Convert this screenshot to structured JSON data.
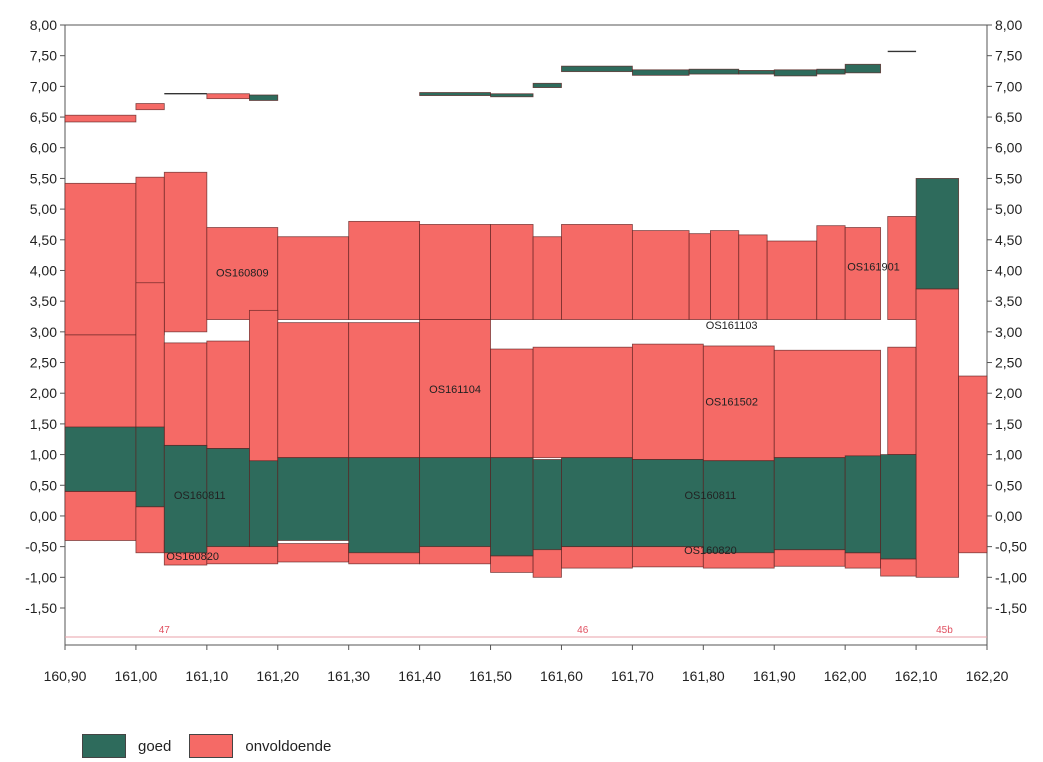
{
  "colors": {
    "goed": "#2e6b5c",
    "onvoldoende": "#f56a66",
    "outline": "#5a1e1e",
    "km_line": "#e8a0a8",
    "km_text": "#e05060"
  },
  "legend": {
    "goed": "goed",
    "onvoldoende": "onvoldoende"
  },
  "chart_data": {
    "type": "area",
    "title": "",
    "xlabel": "",
    "ylabel": "",
    "xlim": [
      160.9,
      162.2
    ],
    "ylim": [
      -1.5,
      8.0
    ],
    "x_ticks": [
      "160,90",
      "161,00",
      "161,10",
      "161,20",
      "161,30",
      "161,40",
      "161,50",
      "161,60",
      "161,70",
      "161,80",
      "161,90",
      "162,00",
      "162,10",
      "162,20"
    ],
    "y_ticks": [
      "8,00",
      "7,50",
      "7,00",
      "6,50",
      "6,00",
      "5,50",
      "5,00",
      "4,50",
      "4,00",
      "3,50",
      "3,00",
      "2,50",
      "2,00",
      "1,50",
      "1,00",
      "0,50",
      "0,00",
      "-0,50",
      "-1,00",
      "-1,50"
    ],
    "series": [
      {
        "name": "onvoldoende",
        "rects": [
          [
            160.9,
            161.0,
            2.95,
            5.42
          ],
          [
            161.0,
            161.04,
            2.95,
            5.52
          ],
          [
            161.04,
            161.1,
            3.0,
            5.6
          ],
          [
            161.1,
            161.2,
            3.2,
            4.7
          ],
          [
            161.2,
            161.3,
            3.2,
            4.55
          ],
          [
            161.3,
            161.4,
            3.2,
            4.8
          ],
          [
            161.4,
            161.5,
            3.2,
            4.75
          ],
          [
            161.5,
            161.56,
            3.2,
            4.75
          ],
          [
            161.56,
            161.6,
            3.2,
            4.55
          ],
          [
            161.6,
            161.7,
            3.2,
            4.75
          ],
          [
            161.7,
            161.78,
            3.2,
            4.65
          ],
          [
            161.78,
            161.81,
            3.2,
            4.6
          ],
          [
            161.81,
            161.85,
            3.2,
            4.65
          ],
          [
            161.85,
            161.89,
            3.2,
            4.58
          ],
          [
            161.89,
            161.96,
            3.2,
            4.48
          ],
          [
            161.96,
            162.0,
            3.2,
            4.73
          ],
          [
            162.0,
            162.05,
            3.2,
            4.7
          ],
          [
            162.06,
            162.1,
            3.2,
            4.88
          ],
          [
            160.9,
            161.0,
            1.4,
            2.95
          ],
          [
            161.0,
            161.04,
            1.4,
            3.8
          ],
          [
            161.04,
            161.1,
            1.15,
            2.82
          ],
          [
            161.1,
            161.16,
            1.1,
            2.85
          ],
          [
            161.16,
            161.2,
            0.88,
            3.35
          ],
          [
            161.2,
            161.3,
            0.95,
            3.15
          ],
          [
            161.3,
            161.4,
            0.95,
            3.15
          ],
          [
            161.4,
            161.5,
            0.95,
            3.2
          ],
          [
            161.5,
            161.56,
            0.95,
            2.72
          ],
          [
            161.56,
            161.7,
            0.95,
            2.75
          ],
          [
            161.7,
            161.8,
            0.92,
            2.8
          ],
          [
            161.8,
            161.9,
            0.9,
            2.77
          ],
          [
            161.9,
            162.05,
            0.95,
            2.7
          ],
          [
            162.06,
            162.1,
            1.0,
            2.75
          ],
          [
            162.1,
            162.16,
            -1.0,
            3.7
          ],
          [
            162.16,
            162.2,
            -0.6,
            2.28
          ],
          [
            160.9,
            161.0,
            -0.4,
            0.4
          ],
          [
            161.0,
            161.04,
            -0.6,
            0.15
          ],
          [
            161.04,
            161.1,
            -0.8,
            -0.4
          ],
          [
            161.1,
            161.2,
            -0.78,
            -0.45
          ],
          [
            161.2,
            161.3,
            -0.75,
            -0.45
          ],
          [
            161.3,
            161.4,
            -0.78,
            -0.45
          ],
          [
            161.4,
            161.5,
            -0.78,
            -0.45
          ],
          [
            161.5,
            161.56,
            -0.92,
            -0.65
          ],
          [
            161.56,
            161.6,
            -1.0,
            -0.5
          ],
          [
            161.6,
            161.7,
            -0.85,
            -0.5
          ],
          [
            161.7,
            161.8,
            -0.83,
            -0.5
          ],
          [
            161.8,
            161.9,
            -0.85,
            -0.55
          ],
          [
            161.9,
            162.0,
            -0.82,
            -0.55
          ],
          [
            162.0,
            162.05,
            -0.85,
            -0.6
          ],
          [
            162.05,
            162.1,
            -0.98,
            -0.7
          ],
          [
            160.9,
            161.0,
            6.42,
            6.53
          ],
          [
            161.0,
            161.04,
            6.62,
            6.72
          ],
          [
            161.1,
            161.16,
            6.8,
            6.88
          ]
        ]
      },
      {
        "name": "goed",
        "rects": [
          [
            160.9,
            161.0,
            0.4,
            1.45
          ],
          [
            161.0,
            161.04,
            0.15,
            1.45
          ],
          [
            161.04,
            161.1,
            -0.6,
            1.15
          ],
          [
            161.1,
            161.16,
            -0.5,
            1.1
          ],
          [
            161.16,
            161.2,
            -0.5,
            0.9
          ],
          [
            161.2,
            161.3,
            -0.4,
            0.95
          ],
          [
            161.3,
            161.4,
            -0.6,
            0.95
          ],
          [
            161.4,
            161.5,
            -0.5,
            0.95
          ],
          [
            161.5,
            161.56,
            -0.65,
            0.95
          ],
          [
            161.56,
            161.6,
            -0.55,
            0.92
          ],
          [
            161.6,
            161.7,
            -0.5,
            0.95
          ],
          [
            161.7,
            161.8,
            -0.5,
            0.92
          ],
          [
            161.8,
            161.9,
            -0.6,
            0.9
          ],
          [
            161.9,
            162.0,
            -0.55,
            0.95
          ],
          [
            162.0,
            162.05,
            -0.6,
            0.98
          ],
          [
            162.05,
            162.1,
            -0.7,
            1.0
          ],
          [
            162.1,
            162.16,
            3.7,
            5.5
          ],
          [
            161.16,
            161.2,
            6.77,
            6.86
          ],
          [
            161.4,
            161.5,
            6.85,
            6.9
          ],
          [
            161.5,
            161.56,
            6.83,
            6.88
          ],
          [
            161.56,
            161.6,
            6.98,
            7.05
          ],
          [
            161.6,
            161.7,
            7.24,
            7.33
          ],
          [
            161.7,
            161.78,
            7.18,
            7.27
          ],
          [
            161.78,
            161.85,
            7.2,
            7.28
          ],
          [
            161.85,
            161.9,
            7.2,
            7.26
          ],
          [
            161.9,
            161.96,
            7.17,
            7.27
          ],
          [
            161.96,
            162.0,
            7.2,
            7.28
          ],
          [
            162.0,
            162.05,
            7.22,
            7.36
          ]
        ]
      }
    ],
    "flat_lines": [
      [
        161.04,
        161.1,
        6.88
      ],
      [
        162.06,
        162.1,
        7.57
      ]
    ],
    "annotations": [
      {
        "text": "OS160809",
        "x": 161.15,
        "y": 3.9
      },
      {
        "text": "OS161104",
        "x": 161.45,
        "y": 2.0
      },
      {
        "text": "OS161502",
        "x": 161.84,
        "y": 1.8
      },
      {
        "text": "OS161103",
        "x": 161.84,
        "y": 3.05
      },
      {
        "text": "OS161901",
        "x": 162.04,
        "y": 4.0
      },
      {
        "text": "OS160811",
        "x": 161.09,
        "y": 0.28
      },
      {
        "text": "OS160811",
        "x": 161.81,
        "y": 0.28
      },
      {
        "text": "OS160820",
        "x": 161.08,
        "y": -0.72
      },
      {
        "text": "OS160820",
        "x": 161.81,
        "y": -0.62
      }
    ],
    "km_markers": [
      {
        "text": "47",
        "x": 161.04
      },
      {
        "text": "46",
        "x": 161.63
      },
      {
        "text": "45b",
        "x": 162.14
      }
    ]
  }
}
